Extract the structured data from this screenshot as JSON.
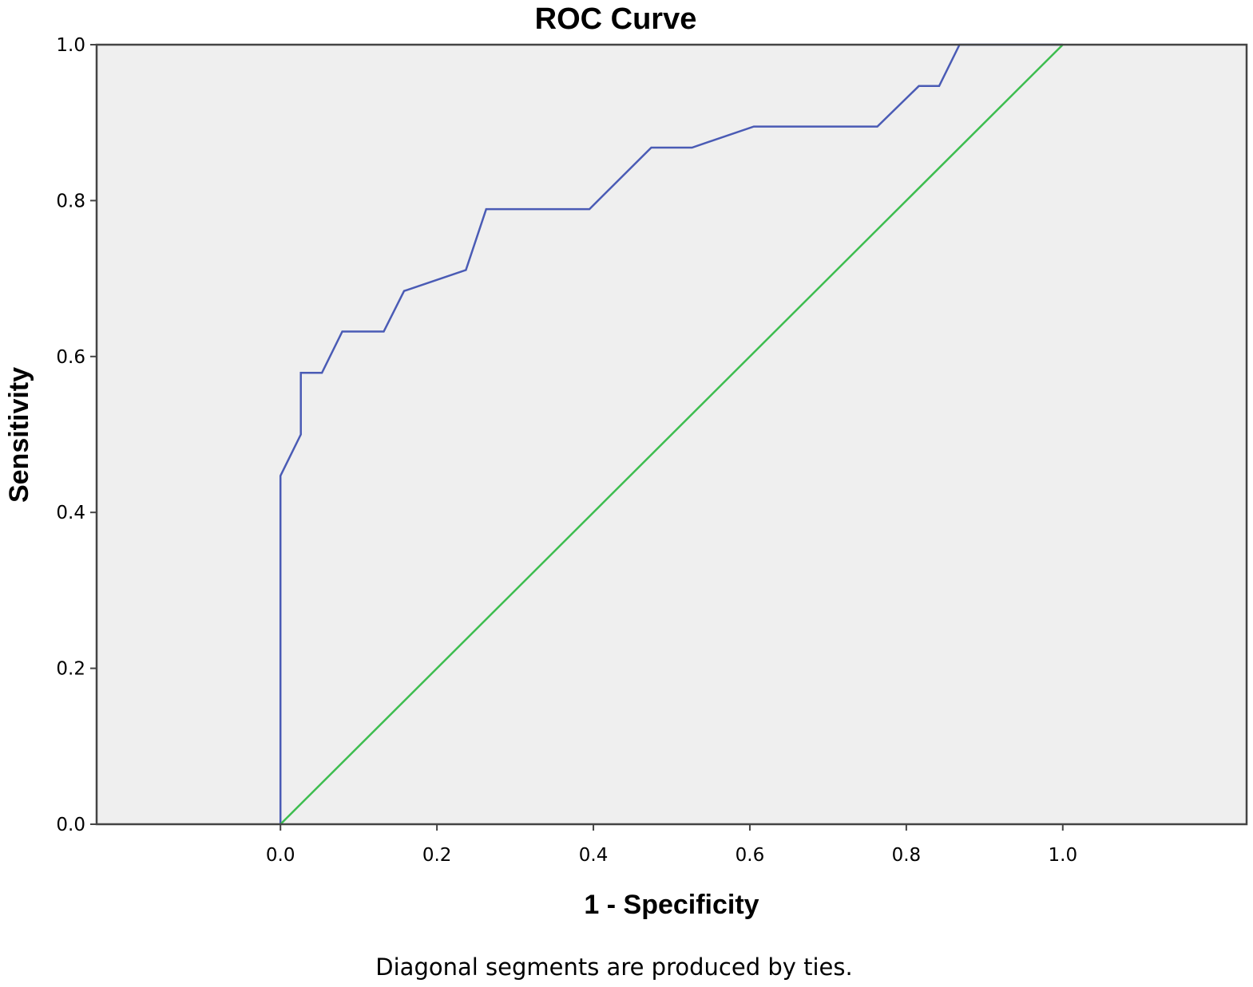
{
  "chart_data": {
    "type": "line",
    "title": "ROC Curve",
    "xlabel": "1 - Specificity",
    "ylabel": "Sensitivity",
    "footnote": "Diagonal segments are produced by ties.",
    "xlim": [
      -0.235,
      1.235
    ],
    "ylim": [
      0,
      1
    ],
    "x_ticks": [
      "0.0",
      "0.2",
      "0.4",
      "0.6",
      "0.8",
      "1.0"
    ],
    "y_ticks": [
      "0.0",
      "0.2",
      "0.4",
      "0.6",
      "0.8",
      "1.0"
    ],
    "grid": false,
    "legend": "none",
    "series": [
      {
        "color": "#4a5bb5",
        "x": [
          0.0,
          0.0,
          0.026,
          0.026,
          0.053,
          0.079,
          0.132,
          0.158,
          0.237,
          0.263,
          0.395,
          0.474,
          0.526,
          0.605,
          0.763,
          0.816,
          0.842,
          0.868,
          1.0
        ],
        "y": [
          0.0,
          0.447,
          0.5,
          0.579,
          0.579,
          0.632,
          0.632,
          0.684,
          0.711,
          0.789,
          0.789,
          0.868,
          0.868,
          0.895,
          0.895,
          0.947,
          0.947,
          1.0,
          1.0
        ]
      },
      {
        "color": "#3dbd4f",
        "x": [
          0.0,
          1.0
        ],
        "y": [
          0.0,
          1.0
        ]
      }
    ],
    "plot_background": "#efefef",
    "axis_color": "#444444"
  }
}
